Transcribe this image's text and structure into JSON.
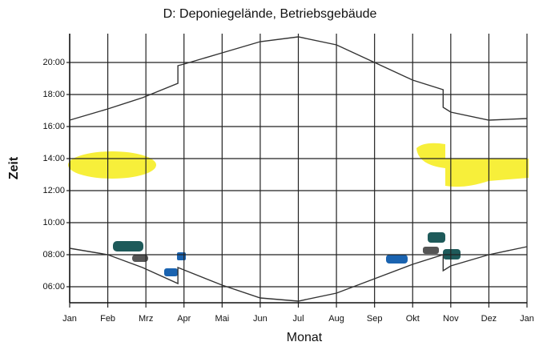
{
  "chart_data": {
    "type": "line",
    "title": "D: Deponiegelände, Betriebsgebäude",
    "xlabel": "Monat",
    "ylabel": "Zeit",
    "xlim": [
      0,
      12
    ],
    "xticks": [
      {
        "value": 0,
        "label": "Jan"
      },
      {
        "value": 1,
        "label": "Feb"
      },
      {
        "value": 2,
        "label": "Mrz"
      },
      {
        "value": 3,
        "label": "Apr"
      },
      {
        "value": 4,
        "label": "Mai"
      },
      {
        "value": 5,
        "label": "Jun"
      },
      {
        "value": 6,
        "label": "Jul"
      },
      {
        "value": 7,
        "label": "Aug"
      },
      {
        "value": 8,
        "label": "Sep"
      },
      {
        "value": 9,
        "label": "Okt"
      },
      {
        "value": 10,
        "label": "Nov"
      },
      {
        "value": 11,
        "label": "Dez"
      },
      {
        "value": 12,
        "label": "Jan"
      }
    ],
    "ylim": [
      5,
      22
    ],
    "yticks": [
      {
        "value": 6,
        "label": "06:00"
      },
      {
        "value": 8,
        "label": "08:00"
      },
      {
        "value": 10,
        "label": "10:00"
      },
      {
        "value": 12,
        "label": "12:00"
      },
      {
        "value": 14,
        "label": "14:00"
      },
      {
        "value": 16,
        "label": "16:00"
      },
      {
        "value": 18,
        "label": "18:00"
      },
      {
        "value": 20,
        "label": "20:00"
      }
    ],
    "grid": true,
    "series": [
      {
        "color": "#333333",
        "x": [
          0,
          1,
          1.91,
          2.84,
          2.84,
          3,
          4,
          5,
          6,
          7,
          8,
          9,
          9.8,
          9.8,
          10,
          11,
          12
        ],
        "values": [
          16.4,
          17.1,
          17.8,
          18.7,
          19.8,
          19.9,
          20.6,
          21.3,
          21.6,
          21.1,
          20.0,
          18.9,
          18.3,
          17.2,
          16.9,
          16.4,
          16.5
        ]
      },
      {
        "color": "#333333",
        "x": [
          0,
          1,
          1.91,
          2.84,
          2.84,
          4,
          5,
          6,
          7,
          8,
          9,
          9.8,
          9.8,
          10,
          11,
          12
        ],
        "values": [
          8.4,
          8.0,
          7.2,
          6.2,
          7.2,
          6.1,
          5.3,
          5.1,
          5.6,
          6.5,
          7.4,
          8.0,
          7.0,
          7.3,
          8.0,
          8.5
        ]
      }
    ]
  }
}
